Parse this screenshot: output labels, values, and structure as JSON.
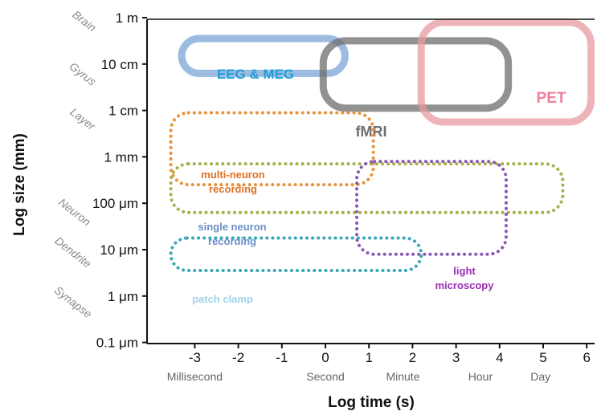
{
  "axes": {
    "xlabel": "Log time (s)",
    "ylabel": "Log size (mm)",
    "xticks": [
      "-3",
      "-2",
      "-1",
      "0",
      "1",
      "2",
      "3",
      "4",
      "5",
      "6"
    ],
    "yticks": [
      "1 m",
      "10 cm",
      "1 cm",
      "1 mm",
      "100 μm",
      "10 μm",
      "1 μm",
      "0.1 μm"
    ],
    "time_units": [
      {
        "label": "Millisecond",
        "at": -3
      },
      {
        "label": "Second",
        "at": 0
      },
      {
        "label": "Minute",
        "at": 1.78
      },
      {
        "label": "Hour",
        "at": 3.56
      },
      {
        "label": "Day",
        "at": 4.94
      }
    ],
    "anatomical_scale": [
      "Brain",
      "Gyrus",
      "Layer",
      "Neuron",
      "Dendrite",
      "Synapse"
    ]
  },
  "methods": [
    {
      "id": "eeg-meg",
      "lines": [
        "EEG & MEG"
      ],
      "color": "#7aa6d6",
      "text_color": "#1f9fd9",
      "style": "solid",
      "x": [
        -3.3,
        0.45
      ],
      "y": [
        -1.2,
        -0.45
      ]
    },
    {
      "id": "fmri",
      "lines": [
        "fMRI"
      ],
      "color": "#6e6e6e",
      "text_color": "#6e6e6e",
      "style": "solid",
      "x": [
        -0.05,
        4.2
      ],
      "y": [
        -1.95,
        -0.5
      ]
    },
    {
      "id": "pet",
      "lines": [
        "PET"
      ],
      "color": "#e89aa0",
      "text_color": "#ef7f96",
      "style": "solid",
      "x": [
        2.2,
        6.1
      ],
      "y": [
        -2.25,
        -0.1
      ]
    },
    {
      "id": "multi-neuron",
      "lines": [
        "multi-neuron",
        "recording"
      ],
      "color": "#e8923a",
      "text_color": "#e07020",
      "style": "dotted",
      "x": [
        -3.55,
        1.1
      ],
      "y": [
        -3.6,
        -2.05
      ]
    },
    {
      "id": "single-neuron",
      "lines": [
        "single neuron",
        "recording"
      ],
      "color": "#a6b04a",
      "text_color": "#6b8fc7",
      "style": "dotted",
      "x": [
        -3.55,
        5.45
      ],
      "y": [
        -4.2,
        -3.15
      ]
    },
    {
      "id": "light-microscopy",
      "lines": [
        "light",
        "microscopy"
      ],
      "color": "#8a57b5",
      "text_color": "#9b2fb5",
      "style": "dotted",
      "x": [
        0.72,
        4.15
      ],
      "y": [
        -5.1,
        -3.1
      ]
    },
    {
      "id": "patch-clamp",
      "lines": [
        "patch clamp"
      ],
      "color": "#3aa6b8",
      "text_color": "#9fd4e8",
      "style": "dotted",
      "x": [
        -3.55,
        2.2
      ],
      "y": [
        -5.45,
        -4.75
      ]
    }
  ]
}
